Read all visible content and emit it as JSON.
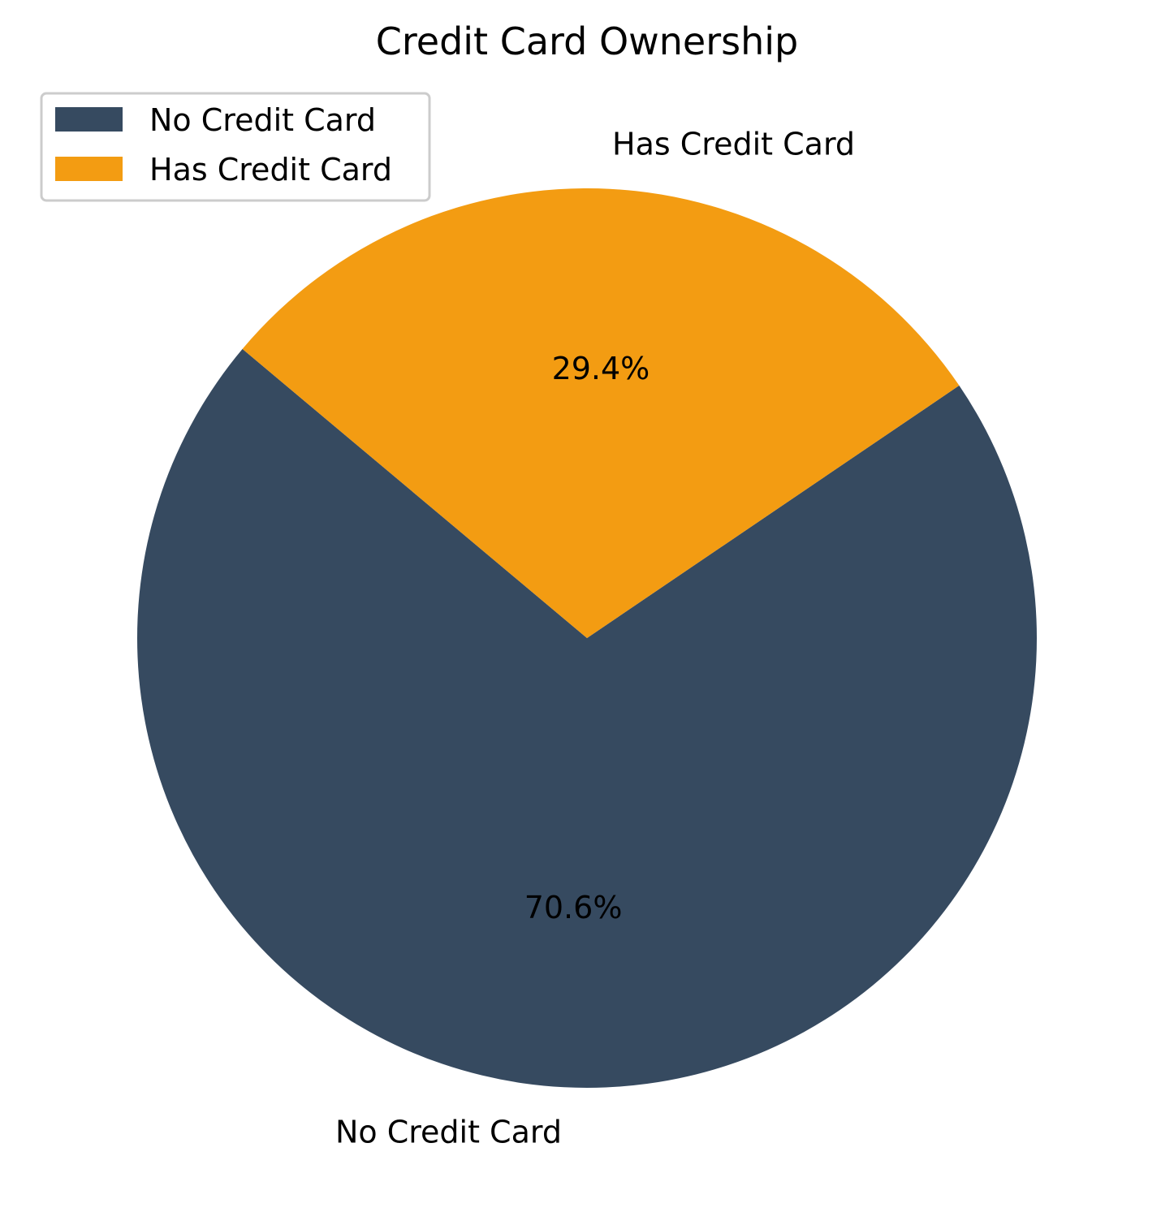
{
  "chart_data": {
    "type": "pie",
    "title": "Credit Card Ownership",
    "slices": [
      {
        "label": "No Credit Card",
        "value": 70.6,
        "pct_label": "70.6%",
        "color": "#364a60"
      },
      {
        "label": "Has Credit Card",
        "value": 29.4,
        "pct_label": "29.4%",
        "color": "#f39c12"
      }
    ],
    "legend": {
      "position": "upper-left",
      "entries": [
        "No Credit Card",
        "Has Credit Card"
      ]
    }
  }
}
